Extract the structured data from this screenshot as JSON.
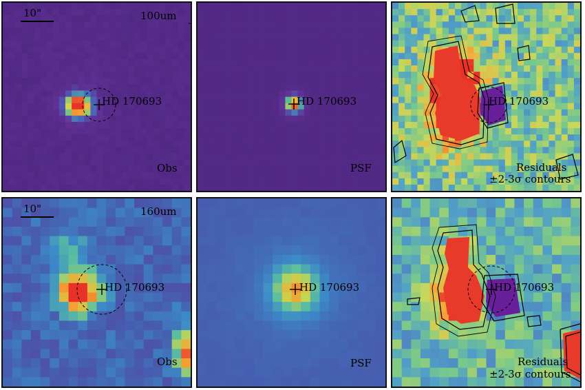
{
  "rows": [
    {
      "band": "100um",
      "panels": [
        {
          "kind": "obs",
          "label": "Obs",
          "band_label": "100um",
          "scale_label": "10\"",
          "star": "HD 170693",
          "palette": "purple"
        },
        {
          "kind": "psf",
          "label": "PSF",
          "star": "HD 170693",
          "palette": "purple"
        },
        {
          "kind": "res",
          "label": "Residuals",
          "label2": "±2-3σ contours",
          "star": "HD 170693",
          "palette": "green"
        }
      ]
    },
    {
      "band": "160um",
      "panels": [
        {
          "kind": "obs",
          "label": "Obs",
          "band_label": "160um",
          "scale_label": "10\"",
          "star": "HD 170693",
          "palette": "blue"
        },
        {
          "kind": "psf",
          "label": "PSF",
          "star": "HD 170693",
          "palette": "blue"
        },
        {
          "kind": "res",
          "label": "Residuals",
          "label2": "±2-3σ contours",
          "star": "HD 170693",
          "palette": "green"
        }
      ]
    }
  ],
  "colors": {
    "purple_bg": "#5a2a8c",
    "blue_bg": "#3b5ca8",
    "green_bg": "#7fc07a",
    "hot": "#e83a2a",
    "warm": "#f2b233",
    "yellow": "#d7d64a",
    "contour": "#000000"
  }
}
